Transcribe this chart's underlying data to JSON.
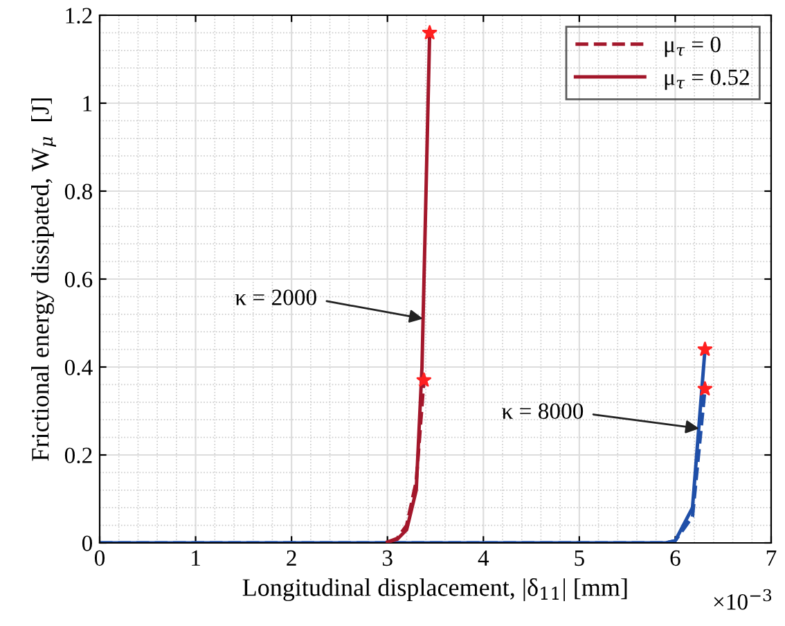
{
  "chart_data": {
    "type": "line",
    "xlabel": "Longitudinal displacement, |δ$_{11}$| [mm]",
    "ylabel": "Frictional energy dissipated, W$_{μ}$  [J]",
    "xlim": [
      0,
      7
    ],
    "xticks": [
      0,
      1,
      2,
      3,
      4,
      5,
      6,
      7
    ],
    "ylim": [
      0,
      1.2
    ],
    "yticks": [
      0,
      0.2,
      0.4,
      0.6,
      0.8,
      1,
      1.2
    ],
    "grid": true,
    "legend": "top right",
    "series": [
      {
        "name": "μ$_{τ}$ = 0",
        "color": "#a3172b",
        "line_style": "dashed",
        "x": [
          3.0,
          3.1,
          3.2,
          3.3,
          3.38
        ],
        "values": [
          0.002,
          0.01,
          0.04,
          0.14,
          0.37
        ]
      },
      {
        "name": "μ$_{τ}$ = 0.52",
        "color": "#a3172b",
        "line_style": "solid",
        "x": [
          3.0,
          3.1,
          3.2,
          3.3,
          3.36,
          3.44
        ],
        "values": [
          0.002,
          0.008,
          0.03,
          0.12,
          0.4,
          1.16
        ]
      },
      {
        "color": "#1f4fa8",
        "line_style": "dashed",
        "x": [
          0,
          1,
          2,
          4,
          5,
          5.9,
          6.0,
          6.18,
          6.31
        ],
        "values": [
          0,
          0,
          0,
          0,
          0,
          0,
          0.005,
          0.06,
          0.35
        ]
      },
      {
        "color": "#1f4fa8",
        "line_style": "solid",
        "x": [
          0,
          1,
          2,
          4,
          5,
          5.9,
          6.0,
          6.18,
          6.31
        ],
        "values": [
          0,
          0,
          0,
          0,
          0,
          0,
          0.005,
          0.08,
          0.44
        ]
      },
      {
        "type": "scatter",
        "color": "#ff2020",
        "marker": "star",
        "x": [
          3.38,
          3.44,
          6.31,
          6.31
        ],
        "values": [
          0.37,
          1.16,
          0.35,
          0.44
        ]
      }
    ],
    "annotations": [
      {
        "text": "κ = 2000",
        "x": 3.37,
        "y": 0.51
      },
      {
        "text": "κ = 8000",
        "x": 6.25,
        "y": 0.26
      },
      "×10$^{−3}$"
    ]
  }
}
